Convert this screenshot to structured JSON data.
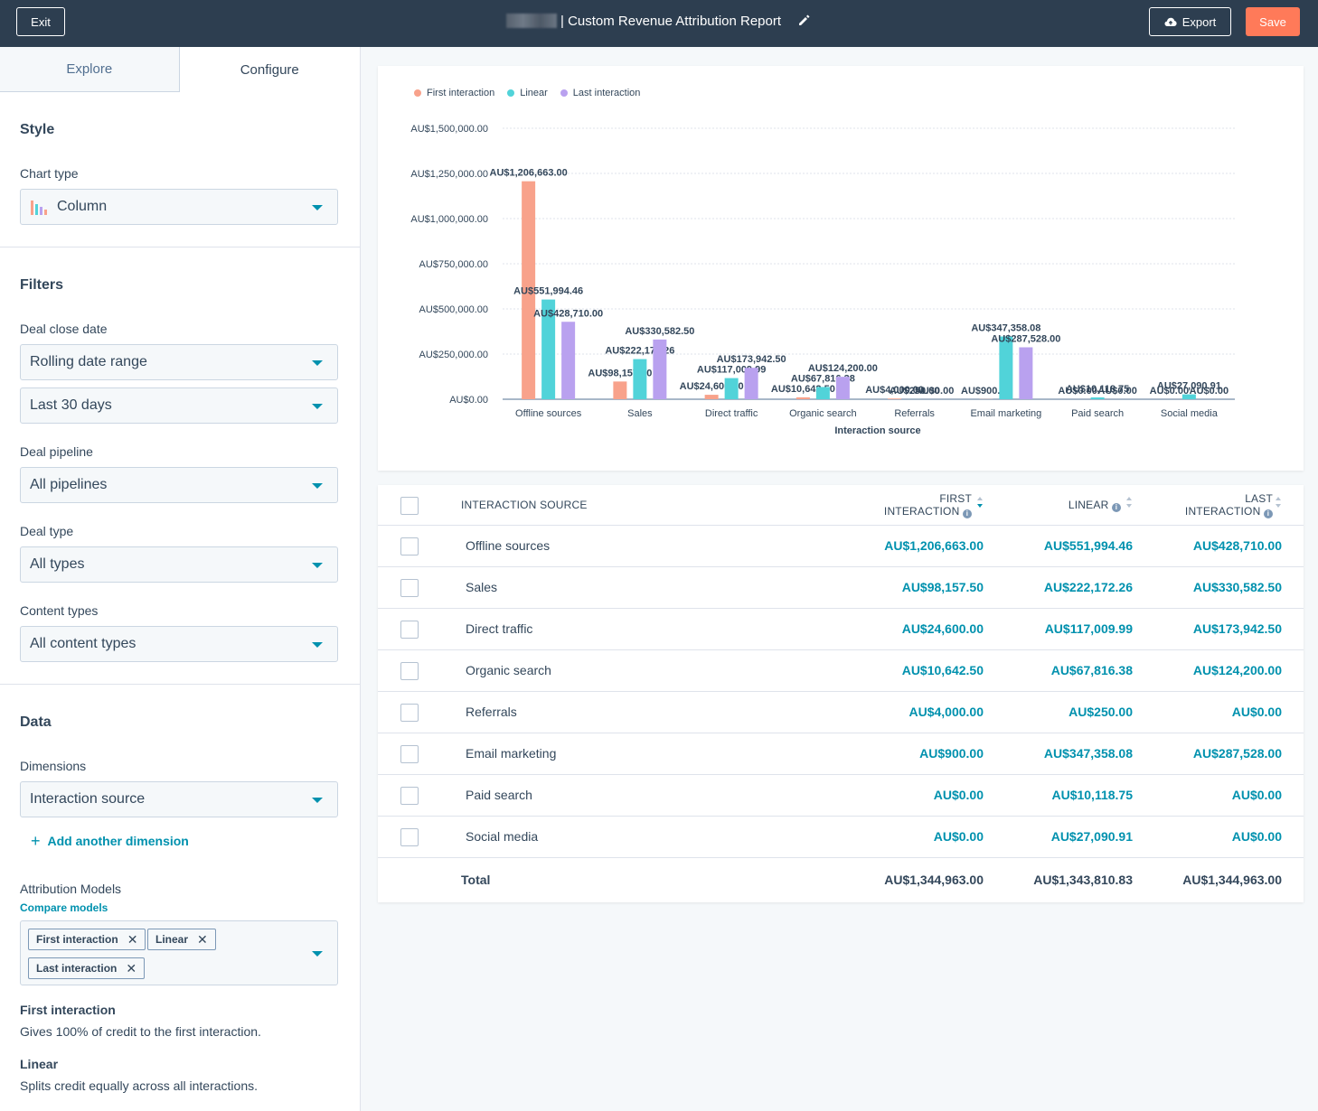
{
  "header": {
    "exit_label": "Exit",
    "title": "| Custom Revenue Attribution Report",
    "export_label": "Export",
    "save_label": "Save"
  },
  "sidebar": {
    "tabs": [
      {
        "label": "Explore"
      },
      {
        "label": "Configure"
      }
    ],
    "style": {
      "title": "Style",
      "chart_type_label": "Chart type",
      "chart_type_value": "Column"
    },
    "filters": {
      "title": "Filters",
      "deal_close_date_label": "Deal close date",
      "date_range_value": "Rolling date range",
      "date_period_value": "Last 30 days",
      "deal_pipeline_label": "Deal pipeline",
      "deal_pipeline_value": "All pipelines",
      "deal_type_label": "Deal type",
      "deal_type_value": "All types",
      "content_types_label": "Content types",
      "content_types_value": "All content types"
    },
    "data": {
      "title": "Data",
      "dimensions_label": "Dimensions",
      "dimension_value": "Interaction source",
      "add_dimension_label": "Add another dimension",
      "attribution_label": "Attribution Models",
      "compare_models_label": "Compare models",
      "model_tags": [
        "First interaction",
        "Linear",
        "Last interaction"
      ],
      "descriptions": [
        {
          "title": "First interaction",
          "text": "Gives 100% of credit to the first interaction."
        },
        {
          "title": "Linear",
          "text": "Splits credit equally across all interactions."
        }
      ]
    }
  },
  "chart_data": {
    "type": "bar",
    "title": "",
    "xlabel": "Interaction source",
    "ylabel": "",
    "ylim": [
      0,
      1500000
    ],
    "y_ticks": [
      "AU$0.00",
      "AU$250,000.00",
      "AU$500,000.00",
      "AU$750,000.00",
      "AU$1,000,000.00",
      "AU$1,250,000.00",
      "AU$1,500,000.00"
    ],
    "grid": true,
    "legend": "top-left",
    "categories": [
      "Offline sources",
      "Sales",
      "Direct traffic",
      "Organic search",
      "Referrals",
      "Email marketing",
      "Paid search",
      "Social media"
    ],
    "series": [
      {
        "name": "First interaction",
        "color": "#f8a28b",
        "values": [
          1206663.0,
          98157.5,
          24600.0,
          10642.5,
          4000.0,
          900.0,
          0.0,
          0.0
        ],
        "labels": [
          "AU$1,206,663.00",
          "AU$98,157.50",
          "AU$24,600.00",
          "AU$10,642.50",
          "AU$4,000.00",
          "AU$900.00",
          "AU$0.00",
          "AU$0.00"
        ]
      },
      {
        "name": "Linear",
        "color": "#51d3d9",
        "values": [
          551994.46,
          222172.26,
          117009.99,
          67816.38,
          250.0,
          347358.08,
          10118.75,
          27090.91
        ],
        "labels": [
          "AU$551,994.46",
          "AU$222,172.26",
          "AU$117,009.99",
          "AU$67,816.38",
          "AU$250.00",
          "AU$347,358.08",
          "AU$10,118.75",
          "AU$27,090.91"
        ]
      },
      {
        "name": "Last interaction",
        "color": "#b9a1ef",
        "values": [
          428710.0,
          330582.5,
          173942.5,
          124200.0,
          0.0,
          287528.0,
          0.0,
          0.0
        ],
        "labels": [
          "AU$428,710.00",
          "AU$330,582.50",
          "AU$173,942.50",
          "AU$124,200.00",
          "AU$0.00",
          "AU$287,528.00",
          "AU$0.00",
          "AU$0.00"
        ]
      }
    ]
  },
  "table": {
    "headers": {
      "source": "INTERACTION SOURCE",
      "first_line1": "FIRST",
      "first_line2": "INTERACTION",
      "linear": "LINEAR",
      "last_line1": "LAST",
      "last_line2": "INTERACTION"
    },
    "rows": [
      {
        "source": "Offline sources",
        "first": "AU$1,206,663.00",
        "linear": "AU$551,994.46",
        "last": "AU$428,710.00"
      },
      {
        "source": "Sales",
        "first": "AU$98,157.50",
        "linear": "AU$222,172.26",
        "last": "AU$330,582.50"
      },
      {
        "source": "Direct traffic",
        "first": "AU$24,600.00",
        "linear": "AU$117,009.99",
        "last": "AU$173,942.50"
      },
      {
        "source": "Organic search",
        "first": "AU$10,642.50",
        "linear": "AU$67,816.38",
        "last": "AU$124,200.00"
      },
      {
        "source": "Referrals",
        "first": "AU$4,000.00",
        "linear": "AU$250.00",
        "last": "AU$0.00"
      },
      {
        "source": "Email marketing",
        "first": "AU$900.00",
        "linear": "AU$347,358.08",
        "last": "AU$287,528.00"
      },
      {
        "source": "Paid search",
        "first": "AU$0.00",
        "linear": "AU$10,118.75",
        "last": "AU$0.00"
      },
      {
        "source": "Social media",
        "first": "AU$0.00",
        "linear": "AU$27,090.91",
        "last": "AU$0.00"
      }
    ],
    "total": {
      "label": "Total",
      "first": "AU$1,344,963.00",
      "linear": "AU$1,343,810.83",
      "last": "AU$1,344,963.00"
    }
  }
}
